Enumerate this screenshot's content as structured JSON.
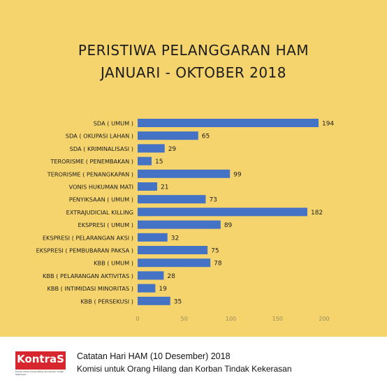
{
  "chart_data": {
    "type": "bar",
    "orientation": "horizontal",
    "title_lines": [
      "PERISTIWA PELANGGARAN HAM",
      "JANUARI - OKTOBER 2018"
    ],
    "categories": [
      "SDA ( UMUM )",
      "SDA ( OKUPASI LAHAN )",
      "SDA ( KRIMINALISASI )",
      "TERORISME ( PENEMBAKAN )",
      "TERORISME ( PENANGKAPAN )",
      "VONIS HUKUMAN MATI",
      "PENYIKSAAN ( UMUM )",
      "EXTRAJUDICIAL KILLING",
      "EKSPRESI ( UMUM )",
      "EKSPRESI ( PELARANGAN AKSI )",
      "EKSPRESI ( PEMBUBARAN PAKSA )",
      "KBB ( UMUM )",
      "KBB ( PELARANGAN AKTIVITAS )",
      "KBB ( INTIMIDASI MINORITAS )",
      "KBB ( PERSEKUSI )"
    ],
    "values": [
      194,
      65,
      29,
      15,
      99,
      21,
      73,
      182,
      89,
      32,
      75,
      78,
      28,
      19,
      35
    ],
    "xlim": [
      0,
      200
    ],
    "xticks": [
      0,
      50,
      100,
      150,
      200
    ],
    "grid": false,
    "bar_color": "#4472c4",
    "background": "#f5d46e"
  },
  "footer": {
    "logo_text": "KontraS",
    "logo_subtext": "Komisi untuk Orang Hilang dan Korban Tindak Kekerasan",
    "line1": "Catatan Hari HAM (10 Desember) 2018",
    "line2": "Komisi untuk Orang Hilang dan Korban Tindak Kekerasan",
    "logo_color": "#d7262d"
  }
}
